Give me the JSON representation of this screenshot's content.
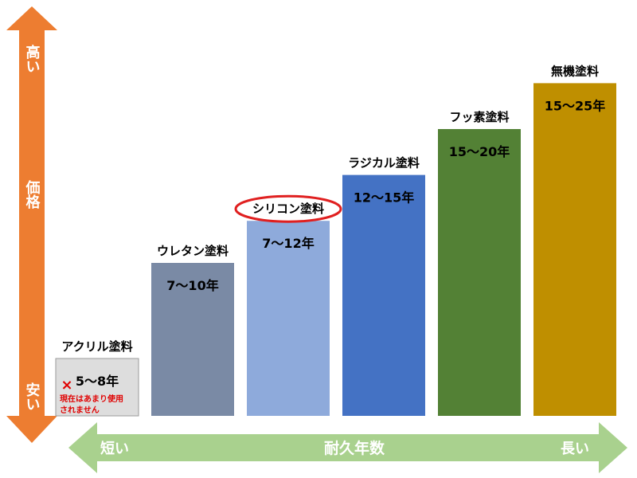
{
  "chart_data": {
    "type": "bar",
    "categories": [
      "アクリル塗料",
      "ウレタン塗料",
      "シリコン塗料",
      "ラジカル塗料",
      "フッ素塗料",
      "無機塗料"
    ],
    "value_labels": [
      "5〜8年",
      "7〜10年",
      "7〜12年",
      "12〜15年",
      "15〜20年",
      "15〜25年"
    ],
    "price_level": [
      0.15,
      0.4,
      0.51,
      0.63,
      0.75,
      0.87
    ],
    "colors": [
      "#dddddd",
      "#7a8aa5",
      "#8eaadb",
      "#4472c4",
      "#538135",
      "#bf8f00"
    ],
    "highlighted_category": "シリコン塗料",
    "highlight_color": "#e02020",
    "note": {
      "mark": "×",
      "lines": [
        "現在はあまり使用",
        "されません"
      ]
    },
    "y_axis": {
      "top": "高い",
      "middle": "価格",
      "bottom": "安い",
      "color": "#ed7d31"
    },
    "x_axis": {
      "left": "短い",
      "middle": "耐久年数",
      "right": "長い",
      "color": "#a9d18e"
    }
  }
}
